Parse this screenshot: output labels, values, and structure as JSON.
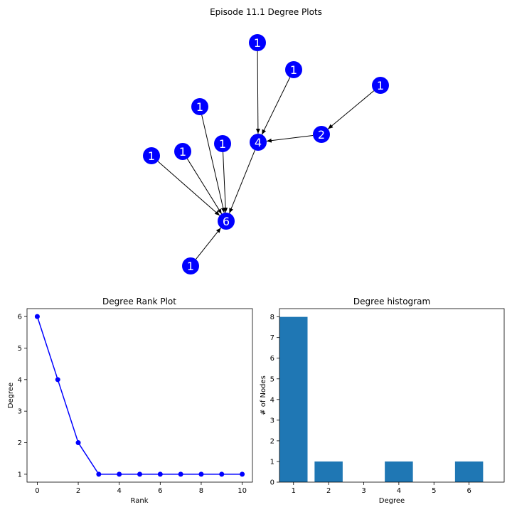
{
  "figure": {
    "title": "Episode 11.1 Degree Plots"
  },
  "chart_data": [
    {
      "type": "network",
      "nodes": [
        {
          "id": "n6",
          "label": "6"
        },
        {
          "id": "n4",
          "label": "4"
        },
        {
          "id": "n2",
          "label": "2"
        },
        {
          "id": "n1a",
          "label": "1"
        },
        {
          "id": "n1b",
          "label": "1"
        },
        {
          "id": "n1c",
          "label": "1"
        },
        {
          "id": "n1d",
          "label": "1"
        },
        {
          "id": "n1e",
          "label": "1"
        },
        {
          "id": "n1f",
          "label": "1"
        },
        {
          "id": "n1g",
          "label": "1"
        },
        {
          "id": "n1h",
          "label": "1"
        }
      ],
      "edges": [
        {
          "from": "n1a",
          "to": "n4"
        },
        {
          "from": "n1b",
          "to": "n4"
        },
        {
          "from": "n2",
          "to": "n4"
        },
        {
          "from": "n1c",
          "to": "n2"
        },
        {
          "from": "n4",
          "to": "n6"
        },
        {
          "from": "n1d",
          "to": "n6"
        },
        {
          "from": "n1e",
          "to": "n6"
        },
        {
          "from": "n1f",
          "to": "n6"
        },
        {
          "from": "n1g",
          "to": "n6"
        },
        {
          "from": "n1h",
          "to": "n6"
        }
      ],
      "node_color": "#0000ff"
    },
    {
      "type": "line",
      "title": "Degree Rank Plot",
      "xlabel": "Rank",
      "ylabel": "Degree",
      "x": [
        0,
        1,
        2,
        3,
        4,
        5,
        6,
        7,
        8,
        9,
        10
      ],
      "y": [
        6,
        4,
        2,
        1,
        1,
        1,
        1,
        1,
        1,
        1,
        1
      ],
      "xlim": [
        -0.5,
        10.5
      ],
      "ylim": [
        0.75,
        6.25
      ],
      "xticks": [
        0,
        2,
        4,
        6,
        8,
        10
      ],
      "yticks": [
        1,
        2,
        3,
        4,
        5,
        6
      ],
      "color": "#0000ff",
      "marker": "circle"
    },
    {
      "type": "bar",
      "title": "Degree histogram",
      "xlabel": "Degree",
      "ylabel": "# of Nodes",
      "categories": [
        1,
        2,
        4,
        6
      ],
      "values": [
        8,
        1,
        1,
        1
      ],
      "xlim": [
        0.6,
        7.0
      ],
      "ylim": [
        0,
        8.4
      ],
      "xticks": [
        1,
        2,
        3,
        4,
        5,
        6
      ],
      "yticks": [
        0,
        1,
        2,
        3,
        4,
        5,
        6,
        7,
        8
      ],
      "color": "#1f77b4"
    }
  ]
}
